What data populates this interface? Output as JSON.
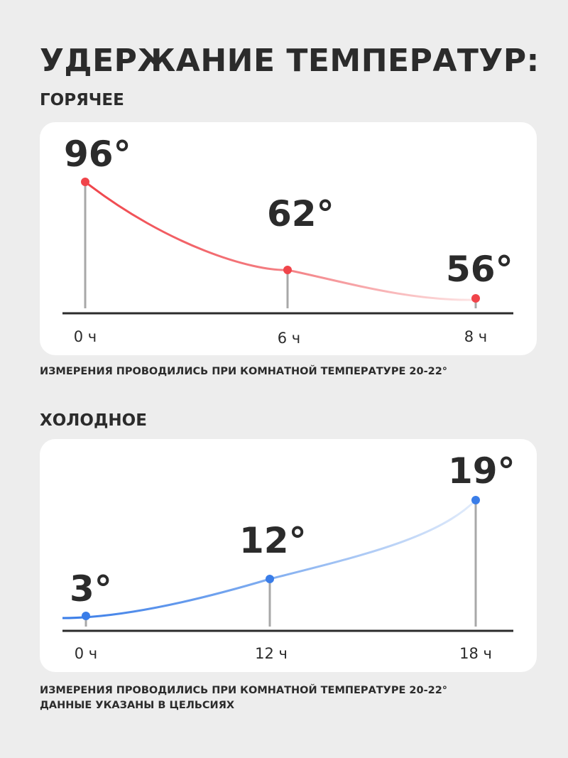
{
  "title": "УДЕРЖАНИЕ ТЕМПЕРАТУР:",
  "colors": {
    "background": "#ededed",
    "card": "#ffffff",
    "hot": "#f0444a",
    "cold": "#3a7de8",
    "axis": "#2b2b2b",
    "stem": "#a8a8a8"
  },
  "sections": [
    {
      "label": "ГОРЯЧЕЕ",
      "notes": [
        "ИЗМЕРЕНИЯ ПРОВОДИЛИСЬ ПРИ КОМНАТНОЙ ТЕМПЕРАТУРЕ 20-22°"
      ]
    },
    {
      "label": "ХОЛОДНОЕ",
      "notes": [
        "ИЗМЕРЕНИЯ ПРОВОДИЛИСЬ ПРИ КОМНАТНОЙ ТЕМПЕРАТУРЕ 20-22°",
        "ДАННЫЕ УКАЗАНЫ В ЦЕЛЬСИЯХ"
      ]
    }
  ],
  "chart_data": [
    {
      "type": "line",
      "title": "ГОРЯЧЕЕ",
      "x": [
        0,
        6,
        8
      ],
      "tick_labels": [
        "0 ч",
        "6 ч",
        "8 ч"
      ],
      "values": [
        96,
        62,
        56
      ],
      "value_labels": [
        "96°",
        "62°",
        "56°"
      ],
      "units": "°C",
      "color": "#f0444a",
      "grid": false,
      "legend": "none"
    },
    {
      "type": "line",
      "title": "ХОЛОДНОЕ",
      "x": [
        0,
        12,
        18
      ],
      "tick_labels": [
        "0 ч",
        "12 ч",
        "18 ч"
      ],
      "values": [
        3,
        12,
        19
      ],
      "value_labels": [
        "3°",
        "12°",
        "19°"
      ],
      "units": "°C",
      "color": "#3a7de8",
      "grid": false,
      "legend": "none"
    }
  ]
}
